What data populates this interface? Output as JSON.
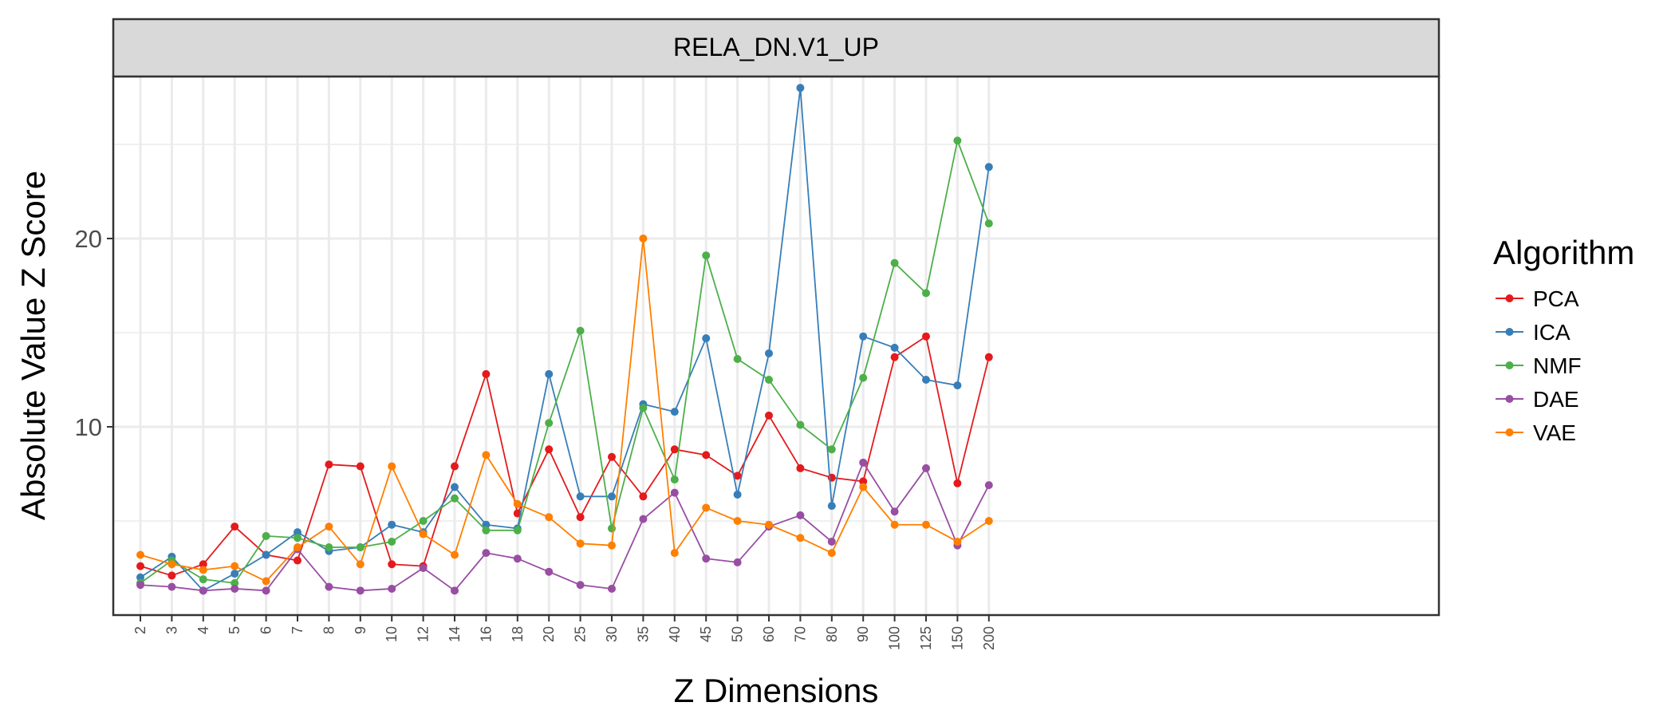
{
  "chart_data": {
    "type": "line",
    "facet_title": "RELA_DN.V1_UP",
    "xlabel": "Z Dimensions",
    "ylabel": "Absolute Value Z Score",
    "categories": [
      "2",
      "3",
      "4",
      "5",
      "6",
      "7",
      "8",
      "9",
      "10",
      "12",
      "14",
      "16",
      "18",
      "20",
      "25",
      "30",
      "35",
      "40",
      "45",
      "50",
      "60",
      "70",
      "80",
      "90",
      "100",
      "125",
      "150",
      "200"
    ],
    "y_ticks": [
      10,
      20
    ],
    "ylim": [
      0.0,
      28.6
    ],
    "grid": true,
    "legend": {
      "title": "Algorithm",
      "position": "right"
    },
    "series": [
      {
        "name": "PCA",
        "color": "#e41a1c",
        "values": [
          2.6,
          2.1,
          2.7,
          4.7,
          3.2,
          2.9,
          8.0,
          7.9,
          2.7,
          2.6,
          7.9,
          12.8,
          5.4,
          8.8,
          5.2,
          8.4,
          6.3,
          8.8,
          8.5,
          7.4,
          10.6,
          7.8,
          7.3,
          7.1,
          13.7,
          14.8,
          7.0,
          13.7
        ]
      },
      {
        "name": "ICA",
        "color": "#377eb8",
        "values": [
          2.0,
          3.1,
          1.3,
          2.2,
          3.2,
          4.4,
          3.4,
          3.6,
          4.8,
          4.4,
          6.8,
          4.8,
          4.6,
          12.8,
          6.3,
          6.3,
          11.2,
          10.8,
          14.7,
          6.4,
          13.9,
          28.0,
          5.8,
          14.8,
          14.2,
          12.5,
          12.2,
          23.8
        ]
      },
      {
        "name": "NMF",
        "color": "#4daf4a",
        "values": [
          1.7,
          2.9,
          1.9,
          1.7,
          4.2,
          4.1,
          3.6,
          3.6,
          3.9,
          5.0,
          6.2,
          4.5,
          4.5,
          10.2,
          15.1,
          4.6,
          11.0,
          7.2,
          19.1,
          13.6,
          12.5,
          10.1,
          8.8,
          12.6,
          18.7,
          17.1,
          25.2,
          20.8
        ]
      },
      {
        "name": "DAE",
        "color": "#984ea3",
        "values": [
          1.6,
          1.5,
          1.3,
          1.4,
          1.3,
          3.5,
          1.5,
          1.3,
          1.4,
          2.5,
          1.3,
          3.3,
          3.0,
          2.3,
          1.6,
          1.4,
          5.1,
          6.5,
          3.0,
          2.8,
          4.7,
          5.3,
          3.9,
          8.1,
          5.5,
          7.8,
          3.7,
          6.9
        ]
      },
      {
        "name": "VAE",
        "color": "#ff7f00",
        "values": [
          3.2,
          2.7,
          2.4,
          2.6,
          1.8,
          3.6,
          4.7,
          2.7,
          7.9,
          4.3,
          3.2,
          8.5,
          5.9,
          5.2,
          3.8,
          3.7,
          20.0,
          3.3,
          5.7,
          5.0,
          4.8,
          4.1,
          3.3,
          6.8,
          4.8,
          4.8,
          3.9,
          5.0
        ]
      }
    ]
  }
}
